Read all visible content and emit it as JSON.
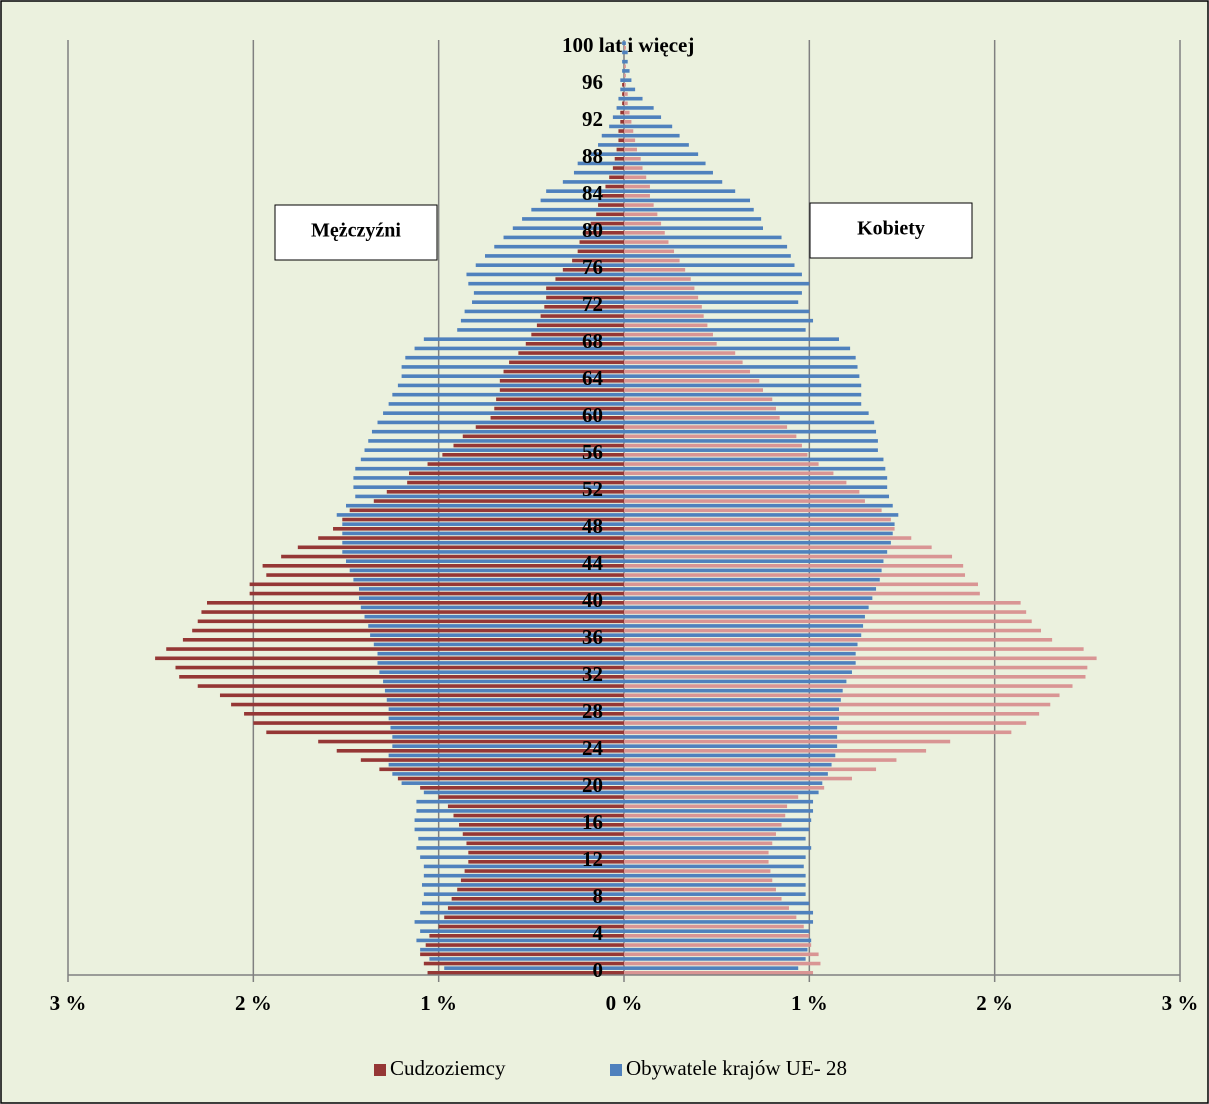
{
  "chart_data": {
    "type": "pyramid",
    "categories": [
      "0",
      null,
      null,
      null,
      "4",
      null,
      null,
      null,
      "8",
      null,
      null,
      null,
      "12",
      null,
      null,
      null,
      "16",
      null,
      null,
      null,
      "20",
      null,
      null,
      null,
      "24",
      null,
      null,
      null,
      "28",
      null,
      null,
      null,
      "32",
      null,
      null,
      null,
      "36",
      null,
      null,
      null,
      "40",
      null,
      null,
      null,
      "44",
      null,
      null,
      null,
      "48",
      null,
      null,
      null,
      "52",
      null,
      null,
      null,
      "56",
      null,
      null,
      null,
      "60",
      null,
      null,
      null,
      "64",
      null,
      null,
      null,
      "68",
      null,
      null,
      null,
      "72",
      null,
      null,
      null,
      "76",
      null,
      null,
      null,
      "80",
      null,
      null,
      null,
      "84",
      null,
      null,
      null,
      "88",
      null,
      null,
      null,
      "92",
      null,
      null,
      null,
      "96",
      null,
      null,
      null,
      "100 lat i więcej"
    ],
    "legend": [
      {
        "name": "Cudzoziemcy",
        "color": "#953735"
      },
      {
        "name": "Obywatele krajów UE- 28",
        "color": "#4f81bd"
      }
    ],
    "sides": [
      {
        "label": "Mężczyźni",
        "direction": "left",
        "series": [
          {
            "color": "#953735",
            "values": [
              1.06,
              1.08,
              1.1,
              1.07,
              1.05,
              1.0,
              0.97,
              0.95,
              0.93,
              0.9,
              0.88,
              0.86,
              0.84,
              0.84,
              0.85,
              0.87,
              0.89,
              0.92,
              0.95,
              1.0,
              1.1,
              1.22,
              1.32,
              1.42,
              1.55,
              1.65,
              1.93,
              2.0,
              2.05,
              2.12,
              2.18,
              2.3,
              2.4,
              2.42,
              2.53,
              2.47,
              2.38,
              2.33,
              2.3,
              2.28,
              2.25,
              2.02,
              2.02,
              1.93,
              1.95,
              1.85,
              1.76,
              1.65,
              1.57,
              1.52,
              1.48,
              1.35,
              1.28,
              1.17,
              1.16,
              1.06,
              0.98,
              0.92,
              0.87,
              0.8,
              0.72,
              0.7,
              0.69,
              0.67,
              0.67,
              0.65,
              0.62,
              0.57,
              0.53,
              0.5,
              0.47,
              0.45,
              0.43,
              0.42,
              0.42,
              0.37,
              0.33,
              0.28,
              0.25,
              0.24,
              0.22,
              0.18,
              0.15,
              0.14,
              0.12,
              0.1,
              0.08,
              0.06,
              0.05,
              0.04,
              0.03,
              0.03,
              0.02,
              0.02,
              0.01,
              0.01,
              0.01,
              0,
              0,
              0,
              0
            ]
          },
          {
            "color": "#4f81bd",
            "values": [
              0.97,
              1.05,
              1.1,
              1.12,
              1.1,
              1.13,
              1.1,
              1.09,
              1.08,
              1.09,
              1.08,
              1.08,
              1.1,
              1.12,
              1.11,
              1.13,
              1.13,
              1.12,
              1.12,
              1.08,
              1.2,
              1.25,
              1.27,
              1.27,
              1.25,
              1.25,
              1.26,
              1.27,
              1.27,
              1.28,
              1.29,
              1.3,
              1.32,
              1.33,
              1.33,
              1.35,
              1.37,
              1.38,
              1.4,
              1.42,
              1.43,
              1.43,
              1.46,
              1.48,
              1.5,
              1.52,
              1.52,
              1.52,
              1.52,
              1.55,
              1.5,
              1.45,
              1.46,
              1.46,
              1.45,
              1.42,
              1.4,
              1.38,
              1.36,
              1.33,
              1.3,
              1.27,
              1.25,
              1.22,
              1.2,
              1.2,
              1.18,
              1.13,
              1.08,
              0.9,
              0.88,
              0.86,
              0.82,
              0.81,
              0.84,
              0.85,
              0.8,
              0.75,
              0.7,
              0.65,
              0.6,
              0.55,
              0.5,
              0.45,
              0.42,
              0.33,
              0.27,
              0.25,
              0.18,
              0.14,
              0.12,
              0.08,
              0.06,
              0.04,
              0.03,
              0.02,
              0.02,
              0.01,
              0.01,
              0.01,
              0.01
            ]
          }
        ]
      },
      {
        "label": "Kobiety",
        "direction": "right",
        "series": [
          {
            "color": "#d99594",
            "values": [
              1.02,
              1.06,
              1.05,
              1.01,
              1.0,
              0.97,
              0.93,
              0.89,
              0.85,
              0.82,
              0.8,
              0.79,
              0.78,
              0.78,
              0.8,
              0.82,
              0.85,
              0.87,
              0.88,
              0.94,
              1.08,
              1.23,
              1.36,
              1.47,
              1.63,
              1.76,
              2.09,
              2.17,
              2.24,
              2.3,
              2.35,
              2.42,
              2.49,
              2.5,
              2.55,
              2.48,
              2.31,
              2.25,
              2.2,
              2.17,
              2.14,
              1.92,
              1.91,
              1.84,
              1.83,
              1.77,
              1.66,
              1.55,
              1.46,
              1.44,
              1.39,
              1.3,
              1.27,
              1.2,
              1.13,
              1.05,
              0.99,
              0.96,
              0.93,
              0.88,
              0.84,
              0.82,
              0.8,
              0.75,
              0.73,
              0.68,
              0.64,
              0.6,
              0.5,
              0.48,
              0.45,
              0.43,
              0.42,
              0.4,
              0.38,
              0.36,
              0.33,
              0.3,
              0.27,
              0.24,
              0.22,
              0.2,
              0.18,
              0.16,
              0.14,
              0.14,
              0.12,
              0.1,
              0.09,
              0.07,
              0.06,
              0.05,
              0.04,
              0.03,
              0.02,
              0.02,
              0.01,
              0.01,
              0.01,
              0,
              0.01
            ]
          },
          {
            "color": "#4f81bd",
            "values": [
              0.94,
              0.98,
              0.99,
              1.01,
              1.0,
              1.02,
              1.02,
              1.0,
              0.98,
              0.98,
              0.98,
              0.97,
              0.98,
              1.01,
              0.98,
              1.0,
              1.01,
              1.02,
              1.02,
              1.05,
              1.07,
              1.1,
              1.12,
              1.14,
              1.15,
              1.15,
              1.15,
              1.16,
              1.16,
              1.17,
              1.18,
              1.2,
              1.23,
              1.25,
              1.25,
              1.26,
              1.28,
              1.29,
              1.3,
              1.32,
              1.34,
              1.36,
              1.38,
              1.39,
              1.4,
              1.42,
              1.44,
              1.45,
              1.46,
              1.48,
              1.45,
              1.43,
              1.42,
              1.42,
              1.41,
              1.4,
              1.37,
              1.37,
              1.36,
              1.35,
              1.32,
              1.28,
              1.28,
              1.28,
              1.27,
              1.26,
              1.25,
              1.22,
              1.16,
              0.98,
              1.02,
              1.0,
              0.94,
              0.96,
              1.0,
              0.96,
              0.92,
              0.9,
              0.88,
              0.85,
              0.75,
              0.74,
              0.7,
              0.68,
              0.6,
              0.53,
              0.48,
              0.44,
              0.4,
              0.35,
              0.3,
              0.26,
              0.2,
              0.16,
              0.1,
              0.06,
              0.04,
              0.03,
              0.02,
              0.02,
              0.01
            ]
          }
        ]
      }
    ],
    "xlim": [
      -3,
      3
    ],
    "xticks": [
      {
        "value": -3,
        "label": "3 %"
      },
      {
        "value": -2,
        "label": "2 %"
      },
      {
        "value": -1,
        "label": "1 %"
      },
      {
        "value": 0,
        "label": "0 %"
      },
      {
        "value": 1,
        "label": "1 %"
      },
      {
        "value": 2,
        "label": "2 %"
      },
      {
        "value": 3,
        "label": "3 %"
      }
    ],
    "grid": true
  }
}
